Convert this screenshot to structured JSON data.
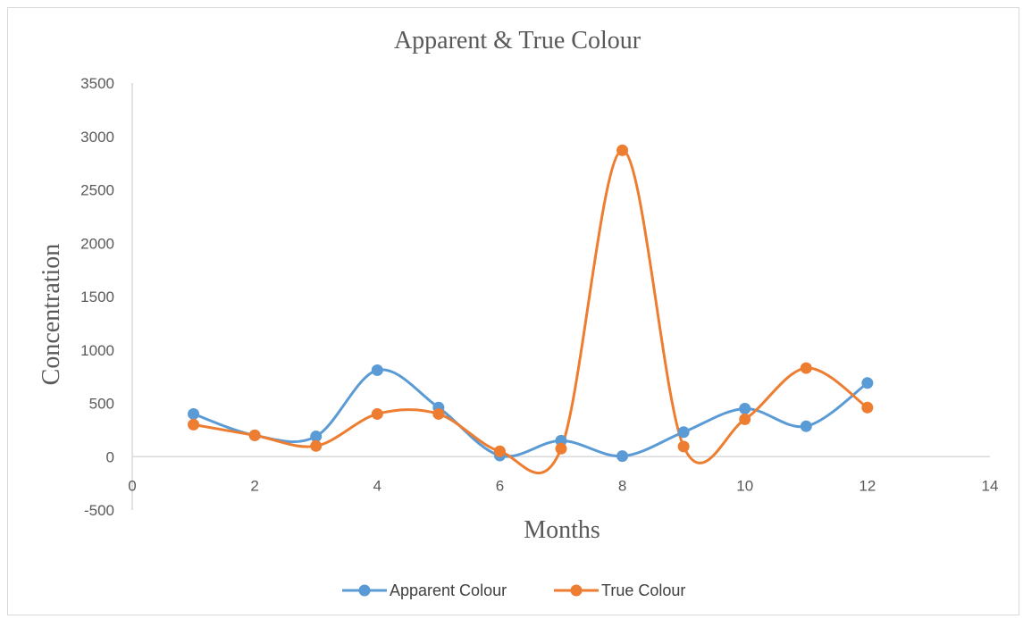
{
  "chart_data": {
    "type": "scatter",
    "title": "Apparent & True Colour",
    "xlabel": "Months",
    "ylabel": "Concentration",
    "xlim": [
      0,
      14
    ],
    "ylim": [
      -500,
      3500
    ],
    "xticks": [
      0,
      2,
      4,
      6,
      8,
      10,
      12,
      14
    ],
    "yticks": [
      -500,
      0,
      500,
      1000,
      1500,
      2000,
      2500,
      3000,
      3500
    ],
    "x_tick_labels": [
      "0",
      "2",
      "4",
      "6",
      "8",
      "10",
      "12",
      "14"
    ],
    "y_tick_labels": [
      "-500",
      "0",
      "500",
      "1000",
      "1500",
      "2000",
      "2500",
      "3000",
      "3500"
    ],
    "smooth_lines": true,
    "grid": false,
    "legend_position": "bottom",
    "series": [
      {
        "name": "Apparent Colour",
        "color": "#5b9bd5",
        "x": [
          1,
          2,
          3,
          4,
          5,
          6,
          7,
          8,
          9,
          10,
          11,
          12
        ],
        "y": [
          400,
          200,
          190,
          810,
          460,
          10,
          150,
          5,
          230,
          450,
          285,
          690
        ]
      },
      {
        "name": "True Colour",
        "color": "#ed7d31",
        "x": [
          1,
          2,
          3,
          4,
          5,
          6,
          7,
          8,
          9,
          10,
          11,
          12
        ],
        "y": [
          300,
          200,
          100,
          400,
          400,
          50,
          75,
          2870,
          95,
          350,
          830,
          460
        ]
      }
    ]
  }
}
